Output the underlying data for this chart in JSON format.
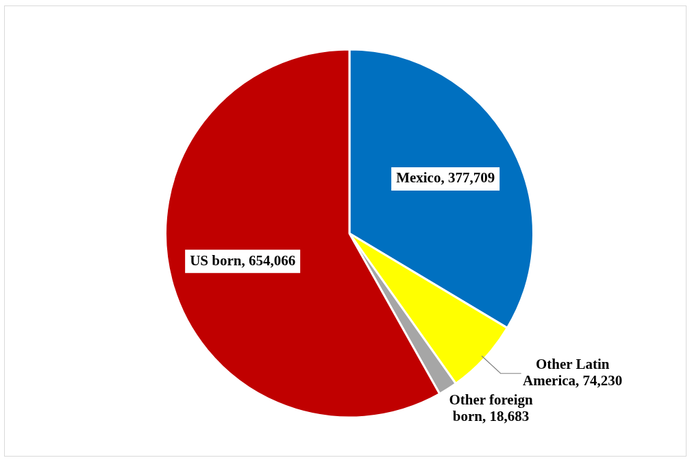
{
  "chart_data": {
    "type": "pie",
    "categories": [
      "Mexico",
      "Other Latin America",
      "Other foreign born",
      "US born"
    ],
    "values": [
      377709,
      74230,
      18683,
      654066
    ],
    "value_labels": [
      "377,709",
      "74,230",
      "18,683",
      "654,066"
    ],
    "colors": [
      "#0070c0",
      "#ffff00",
      "#a6a6a6",
      "#c00000"
    ],
    "legend": false
  }
}
